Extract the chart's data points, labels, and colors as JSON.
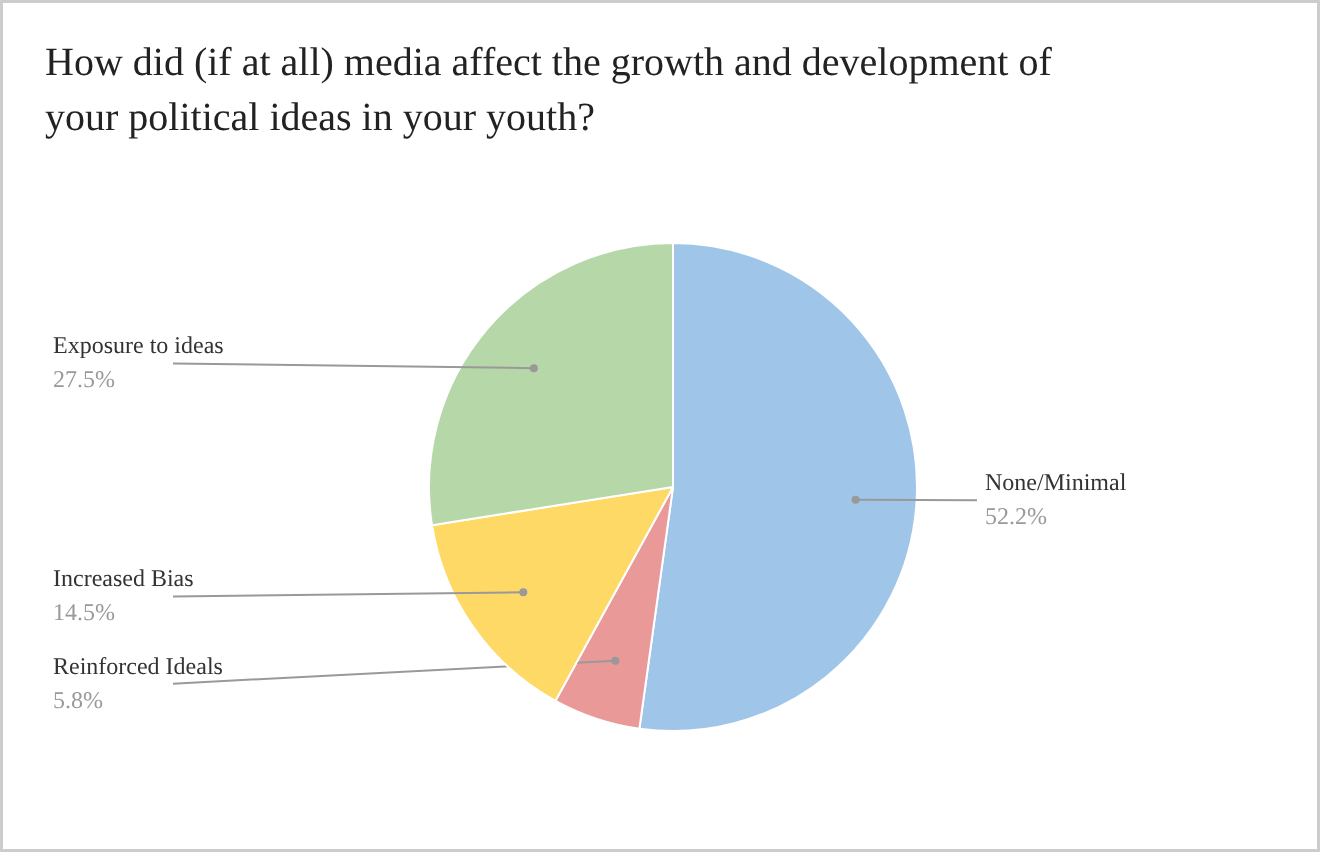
{
  "chart_data": {
    "type": "pie",
    "title": "How did (if at all) media affect the growth and development of your political ideas in your youth?",
    "categories": [
      "None/Minimal",
      "Reinforced Ideals",
      "Increased Bias",
      "Exposure to ideas"
    ],
    "values": [
      52.2,
      5.8,
      14.5,
      27.5
    ],
    "value_labels": [
      "52.2%",
      "5.8%",
      "14.5%",
      "27.5%"
    ],
    "colors": [
      "#9fc5e8",
      "#ea9999",
      "#ffd966",
      "#b6d7a8"
    ]
  }
}
